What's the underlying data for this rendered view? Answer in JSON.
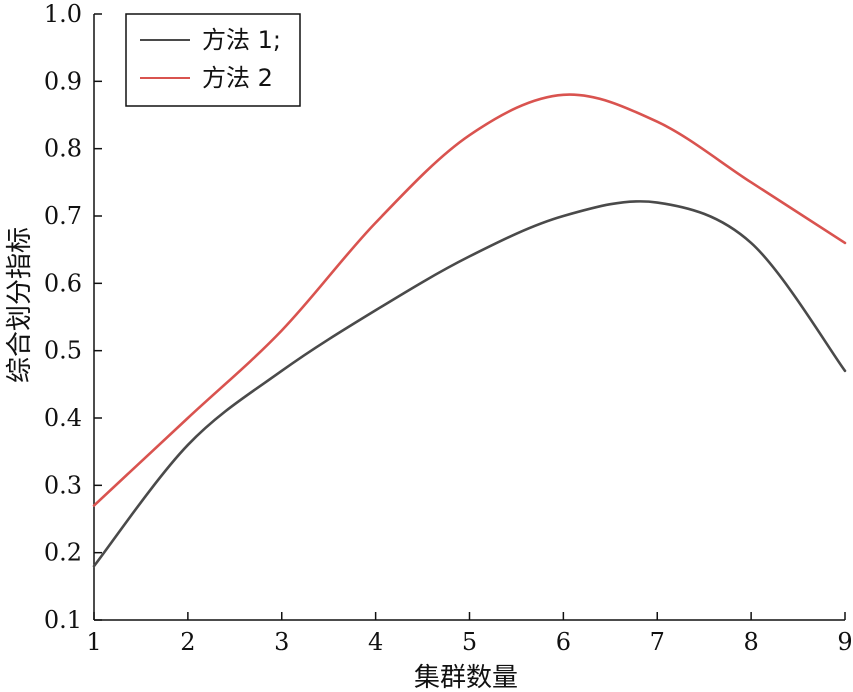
{
  "chart_data": {
    "type": "line",
    "xlabel": "集群数量",
    "ylabel": "综合划分指标",
    "xlim": [
      1,
      9
    ],
    "ylim": [
      0.1,
      1.0
    ],
    "xticks": [
      "1",
      "2",
      "3",
      "4",
      "5",
      "6",
      "7",
      "8",
      "9"
    ],
    "yticks": [
      "0.1",
      "0.2",
      "0.3",
      "0.4",
      "0.5",
      "0.6",
      "0.7",
      "0.8",
      "0.9",
      "1.0"
    ],
    "grid": false,
    "legend_position": "top-left",
    "x": [
      1,
      2,
      3,
      4,
      5,
      6,
      7,
      8,
      9
    ],
    "series": [
      {
        "name": "方法 1;",
        "color": "#4a4a4a",
        "values": [
          0.18,
          0.36,
          0.47,
          0.56,
          0.64,
          0.7,
          0.72,
          0.66,
          0.47
        ]
      },
      {
        "name": "方法 2",
        "color": "#d9534f",
        "values": [
          0.27,
          0.4,
          0.53,
          0.69,
          0.82,
          0.88,
          0.84,
          0.75,
          0.66
        ]
      }
    ]
  }
}
